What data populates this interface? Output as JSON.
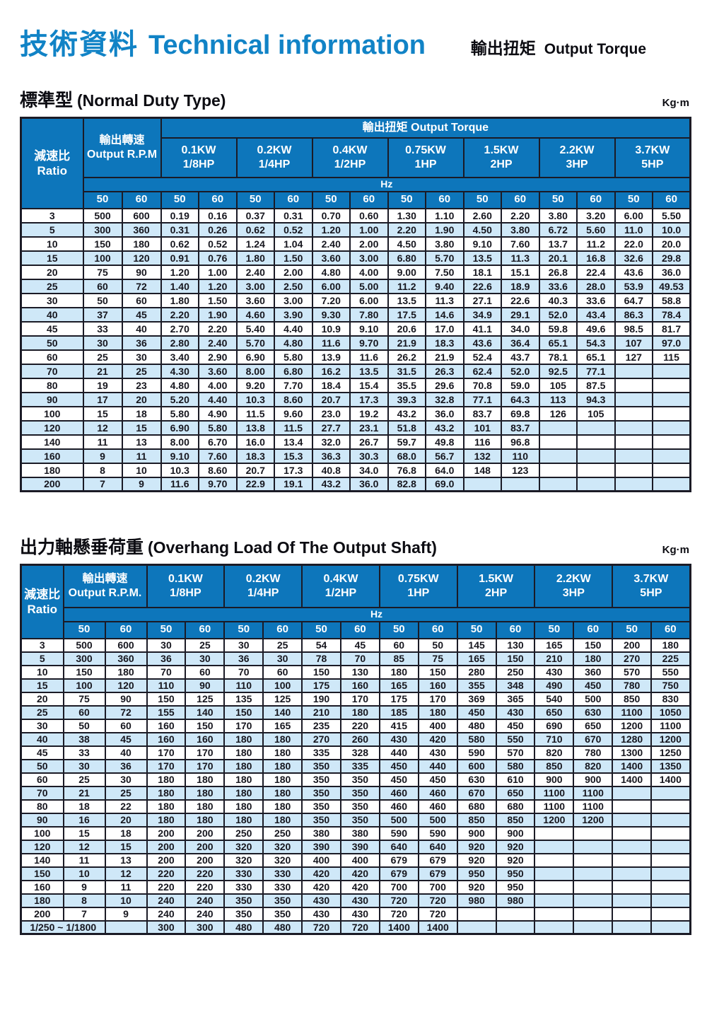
{
  "page": {
    "title_zh": "技術資料",
    "title_en": "Technical information",
    "header_right_zh": "輸出扭矩",
    "header_right_en": "Output Torque"
  },
  "colors": {
    "header_blue": "#0d76bb",
    "row_alt_blue": "#cfe8f8",
    "border_dark": "#1b1b26",
    "title_blue": "#1183c6"
  },
  "common": {
    "hz_label": "Hz",
    "freq_labels": [
      "50",
      "60"
    ],
    "kw_headers": [
      {
        "kw": "0.1KW",
        "hp": "1/8HP"
      },
      {
        "kw": "0.2KW",
        "hp": "1/4HP"
      },
      {
        "kw": "0.4KW",
        "hp": "1/2HP"
      },
      {
        "kw": "0.75KW",
        "hp": "1HP"
      },
      {
        "kw": "1.5KW",
        "hp": "2HP"
      },
      {
        "kw": "2.2KW",
        "hp": "3HP"
      },
      {
        "kw": "3.7KW",
        "hp": "5HP"
      }
    ]
  },
  "table1": {
    "section_zh": "標準型",
    "section_en": "(Normal Duty Type)",
    "unit": "Kg·m",
    "ratio_zh": "減速比",
    "ratio_en": "Ratio",
    "rpm_zh": "輸出轉速",
    "rpm_en": "Output R.P.M",
    "banner_zh": "輸出扭矩",
    "banner_en": "Output Torque",
    "rows": [
      {
        "ratio": "3",
        "cells": [
          "500",
          "600",
          "0.19",
          "0.16",
          "0.37",
          "0.31",
          "0.70",
          "0.60",
          "1.30",
          "1.10",
          "2.60",
          "2.20",
          "3.80",
          "3.20",
          "6.00",
          "5.50"
        ]
      },
      {
        "ratio": "5",
        "cells": [
          "300",
          "360",
          "0.31",
          "0.26",
          "0.62",
          "0.52",
          "1.20",
          "1.00",
          "2.20",
          "1.90",
          "4.50",
          "3.80",
          "6.72",
          "5.60",
          "11.0",
          "10.0"
        ]
      },
      {
        "ratio": "10",
        "cells": [
          "150",
          "180",
          "0.62",
          "0.52",
          "1.24",
          "1.04",
          "2.40",
          "2.00",
          "4.50",
          "3.80",
          "9.10",
          "7.60",
          "13.7",
          "11.2",
          "22.0",
          "20.0"
        ]
      },
      {
        "ratio": "15",
        "cells": [
          "100",
          "120",
          "0.91",
          "0.76",
          "1.80",
          "1.50",
          "3.60",
          "3.00",
          "6.80",
          "5.70",
          "13.5",
          "11.3",
          "20.1",
          "16.8",
          "32.6",
          "29.8"
        ]
      },
      {
        "ratio": "20",
        "cells": [
          "75",
          "90",
          "1.20",
          "1.00",
          "2.40",
          "2.00",
          "4.80",
          "4.00",
          "9.00",
          "7.50",
          "18.1",
          "15.1",
          "26.8",
          "22.4",
          "43.6",
          "36.0"
        ]
      },
      {
        "ratio": "25",
        "cells": [
          "60",
          "72",
          "1.40",
          "1.20",
          "3.00",
          "2.50",
          "6.00",
          "5.00",
          "11.2",
          "9.40",
          "22.6",
          "18.9",
          "33.6",
          "28.0",
          "53.9",
          "49.53"
        ]
      },
      {
        "ratio": "30",
        "cells": [
          "50",
          "60",
          "1.80",
          "1.50",
          "3.60",
          "3.00",
          "7.20",
          "6.00",
          "13.5",
          "11.3",
          "27.1",
          "22.6",
          "40.3",
          "33.6",
          "64.7",
          "58.8"
        ]
      },
      {
        "ratio": "40",
        "cells": [
          "37",
          "45",
          "2.20",
          "1.90",
          "4.60",
          "3.90",
          "9.30",
          "7.80",
          "17.5",
          "14.6",
          "34.9",
          "29.1",
          "52.0",
          "43.4",
          "86.3",
          "78.4"
        ]
      },
      {
        "ratio": "45",
        "cells": [
          "33",
          "40",
          "2.70",
          "2.20",
          "5.40",
          "4.40",
          "10.9",
          "9.10",
          "20.6",
          "17.0",
          "41.1",
          "34.0",
          "59.8",
          "49.6",
          "98.5",
          "81.7"
        ]
      },
      {
        "ratio": "50",
        "cells": [
          "30",
          "36",
          "2.80",
          "2.40",
          "5.70",
          "4.80",
          "11.6",
          "9.70",
          "21.9",
          "18.3",
          "43.6",
          "36.4",
          "65.1",
          "54.3",
          "107",
          "97.0"
        ]
      },
      {
        "ratio": "60",
        "cells": [
          "25",
          "30",
          "3.40",
          "2.90",
          "6.90",
          "5.80",
          "13.9",
          "11.6",
          "26.2",
          "21.9",
          "52.4",
          "43.7",
          "78.1",
          "65.1",
          "127",
          "115"
        ]
      },
      {
        "ratio": "70",
        "cells": [
          "21",
          "25",
          "4.30",
          "3.60",
          "8.00",
          "6.80",
          "16.2",
          "13.5",
          "31.5",
          "26.3",
          "62.4",
          "52.0",
          "92.5",
          "77.1",
          "",
          ""
        ]
      },
      {
        "ratio": "80",
        "cells": [
          "19",
          "23",
          "4.80",
          "4.00",
          "9.20",
          "7.70",
          "18.4",
          "15.4",
          "35.5",
          "29.6",
          "70.8",
          "59.0",
          "105",
          "87.5",
          "",
          ""
        ]
      },
      {
        "ratio": "90",
        "cells": [
          "17",
          "20",
          "5.20",
          "4.40",
          "10.3",
          "8.60",
          "20.7",
          "17.3",
          "39.3",
          "32.8",
          "77.1",
          "64.3",
          "113",
          "94.3",
          "",
          ""
        ]
      },
      {
        "ratio": "100",
        "cells": [
          "15",
          "18",
          "5.80",
          "4.90",
          "11.5",
          "9.60",
          "23.0",
          "19.2",
          "43.2",
          "36.0",
          "83.7",
          "69.8",
          "126",
          "105",
          "",
          ""
        ]
      },
      {
        "ratio": "120",
        "cells": [
          "12",
          "15",
          "6.90",
          "5.80",
          "13.8",
          "11.5",
          "27.7",
          "23.1",
          "51.8",
          "43.2",
          "101",
          "83.7",
          "",
          "",
          "",
          ""
        ]
      },
      {
        "ratio": "140",
        "cells": [
          "11",
          "13",
          "8.00",
          "6.70",
          "16.0",
          "13.4",
          "32.0",
          "26.7",
          "59.7",
          "49.8",
          "116",
          "96.8",
          "",
          "",
          "",
          ""
        ]
      },
      {
        "ratio": "160",
        "cells": [
          "9",
          "11",
          "9.10",
          "7.60",
          "18.3",
          "15.3",
          "36.3",
          "30.3",
          "68.0",
          "56.7",
          "132",
          "110",
          "",
          "",
          "",
          ""
        ]
      },
      {
        "ratio": "180",
        "cells": [
          "8",
          "10",
          "10.3",
          "8.60",
          "20.7",
          "17.3",
          "40.8",
          "34.0",
          "76.8",
          "64.0",
          "148",
          "123",
          "",
          "",
          "",
          ""
        ]
      },
      {
        "ratio": "200",
        "cells": [
          "7",
          "9",
          "11.6",
          "9.70",
          "22.9",
          "19.1",
          "43.2",
          "36.0",
          "82.8",
          "69.0",
          "",
          "",
          "",
          "",
          "",
          ""
        ]
      }
    ]
  },
  "table2": {
    "section_zh": "出力軸懸垂荷重",
    "section_en": "(Overhang Load Of The Output Shaft)",
    "unit": "Kg·m",
    "ratio_zh": "減速比",
    "ratio_en": "Ratio",
    "rpm_zh": "輸出轉速",
    "rpm_en": "Output R.P.M.",
    "rows": [
      {
        "ratio": "3",
        "cells": [
          "500",
          "600",
          "30",
          "25",
          "30",
          "25",
          "54",
          "45",
          "60",
          "50",
          "145",
          "130",
          "165",
          "150",
          "200",
          "180"
        ]
      },
      {
        "ratio": "5",
        "cells": [
          "300",
          "360",
          "36",
          "30",
          "36",
          "30",
          "78",
          "70",
          "85",
          "75",
          "165",
          "150",
          "210",
          "180",
          "270",
          "225"
        ]
      },
      {
        "ratio": "10",
        "cells": [
          "150",
          "180",
          "70",
          "60",
          "70",
          "60",
          "150",
          "130",
          "180",
          "150",
          "280",
          "250",
          "430",
          "360",
          "570",
          "550"
        ]
      },
      {
        "ratio": "15",
        "cells": [
          "100",
          "120",
          "110",
          "90",
          "110",
          "100",
          "175",
          "160",
          "165",
          "160",
          "355",
          "348",
          "490",
          "450",
          "780",
          "750"
        ]
      },
      {
        "ratio": "20",
        "cells": [
          "75",
          "90",
          "150",
          "125",
          "135",
          "125",
          "190",
          "170",
          "175",
          "170",
          "369",
          "365",
          "540",
          "500",
          "850",
          "830"
        ]
      },
      {
        "ratio": "25",
        "cells": [
          "60",
          "72",
          "155",
          "140",
          "150",
          "140",
          "210",
          "180",
          "185",
          "180",
          "450",
          "430",
          "650",
          "630",
          "1100",
          "1050"
        ]
      },
      {
        "ratio": "30",
        "cells": [
          "50",
          "60",
          "160",
          "150",
          "170",
          "165",
          "235",
          "220",
          "415",
          "400",
          "480",
          "450",
          "690",
          "650",
          "1200",
          "1100"
        ]
      },
      {
        "ratio": "40",
        "cells": [
          "38",
          "45",
          "160",
          "160",
          "180",
          "180",
          "270",
          "260",
          "430",
          "420",
          "580",
          "550",
          "710",
          "670",
          "1280",
          "1200"
        ]
      },
      {
        "ratio": "45",
        "cells": [
          "33",
          "40",
          "170",
          "170",
          "180",
          "180",
          "335",
          "328",
          "440",
          "430",
          "590",
          "570",
          "820",
          "780",
          "1300",
          "1250"
        ]
      },
      {
        "ratio": "50",
        "cells": [
          "30",
          "36",
          "170",
          "170",
          "180",
          "180",
          "350",
          "335",
          "450",
          "440",
          "600",
          "580",
          "850",
          "820",
          "1400",
          "1350"
        ]
      },
      {
        "ratio": "60",
        "cells": [
          "25",
          "30",
          "180",
          "180",
          "180",
          "180",
          "350",
          "350",
          "450",
          "450",
          "630",
          "610",
          "900",
          "900",
          "1400",
          "1400"
        ]
      },
      {
        "ratio": "70",
        "cells": [
          "21",
          "25",
          "180",
          "180",
          "180",
          "180",
          "350",
          "350",
          "460",
          "460",
          "670",
          "650",
          "1100",
          "1100",
          "",
          ""
        ]
      },
      {
        "ratio": "80",
        "cells": [
          "18",
          "22",
          "180",
          "180",
          "180",
          "180",
          "350",
          "350",
          "460",
          "460",
          "680",
          "680",
          "1100",
          "1100",
          "",
          ""
        ]
      },
      {
        "ratio": "90",
        "cells": [
          "16",
          "20",
          "180",
          "180",
          "180",
          "180",
          "350",
          "350",
          "500",
          "500",
          "850",
          "850",
          "1200",
          "1200",
          "",
          ""
        ]
      },
      {
        "ratio": "100",
        "cells": [
          "15",
          "18",
          "200",
          "200",
          "250",
          "250",
          "380",
          "380",
          "590",
          "590",
          "900",
          "900",
          "",
          "",
          "",
          ""
        ]
      },
      {
        "ratio": "120",
        "cells": [
          "12",
          "15",
          "200",
          "200",
          "320",
          "320",
          "390",
          "390",
          "640",
          "640",
          "920",
          "920",
          "",
          "",
          "",
          ""
        ]
      },
      {
        "ratio": "140",
        "cells": [
          "11",
          "13",
          "200",
          "200",
          "320",
          "320",
          "400",
          "400",
          "679",
          "679",
          "920",
          "920",
          "",
          "",
          "",
          ""
        ]
      },
      {
        "ratio": "150",
        "cells": [
          "10",
          "12",
          "220",
          "220",
          "330",
          "330",
          "420",
          "420",
          "679",
          "679",
          "950",
          "950",
          "",
          "",
          "",
          ""
        ]
      },
      {
        "ratio": "160",
        "cells": [
          "9",
          "11",
          "220",
          "220",
          "330",
          "330",
          "420",
          "420",
          "700",
          "700",
          "920",
          "950",
          "",
          "",
          "",
          ""
        ]
      },
      {
        "ratio": "180",
        "cells": [
          "8",
          "10",
          "240",
          "240",
          "350",
          "350",
          "430",
          "430",
          "720",
          "720",
          "980",
          "980",
          "",
          "",
          "",
          ""
        ]
      },
      {
        "ratio": "200",
        "cells": [
          "7",
          "9",
          "240",
          "240",
          "350",
          "350",
          "430",
          "430",
          "720",
          "720",
          "",
          "",
          "",
          "",
          "",
          ""
        ]
      },
      {
        "ratio": "1/250 ~ 1/1800",
        "merged": true,
        "cells": [
          "",
          "300",
          "300",
          "480",
          "480",
          "720",
          "720",
          "1400",
          "1400",
          "",
          "",
          "",
          "",
          "",
          ""
        ]
      }
    ]
  }
}
